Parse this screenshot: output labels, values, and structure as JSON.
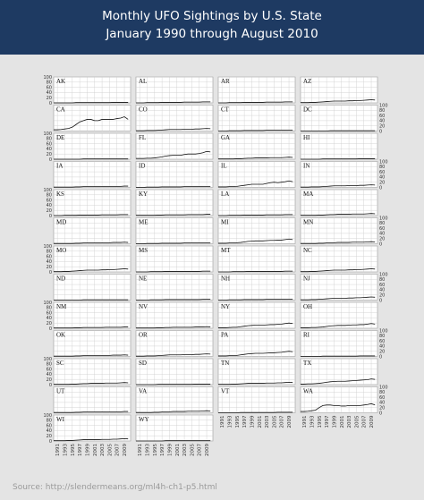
{
  "chart_data": {
    "type": "line",
    "title": "Monthly UFO Sightings by U.S. State",
    "subtitle": "January 1990 through August 2010",
    "x": [
      1990,
      1991,
      1992,
      1993,
      1994,
      1995,
      1996,
      1997,
      1998,
      1999,
      2000,
      2001,
      2002,
      2003,
      2004,
      2005,
      2006,
      2007,
      2008,
      2009,
      2010
    ],
    "xlim": [
      1990,
      2010.67
    ],
    "xticks": [
      1991,
      1993,
      1995,
      1997,
      1999,
      2001,
      2003,
      2005,
      2007,
      2009
    ],
    "ylim": [
      0,
      100
    ],
    "yticks": [
      0,
      20,
      40,
      60,
      80,
      100
    ],
    "grid": true,
    "color": "#111111",
    "series": [
      {
        "name": "AK",
        "values": [
          0,
          0,
          0,
          0,
          0,
          0,
          1,
          1,
          1,
          1,
          1,
          1,
          1,
          1,
          1,
          1,
          2,
          2,
          2,
          2,
          2
        ]
      },
      {
        "name": "AL",
        "values": [
          0,
          0,
          0,
          1,
          1,
          1,
          1,
          2,
          2,
          2,
          2,
          2,
          2,
          3,
          3,
          3,
          3,
          3,
          4,
          4,
          4
        ]
      },
      {
        "name": "AR",
        "values": [
          0,
          0,
          0,
          1,
          1,
          1,
          1,
          2,
          2,
          2,
          2,
          2,
          2,
          3,
          3,
          3,
          3,
          3,
          4,
          4,
          4
        ]
      },
      {
        "name": "AZ",
        "values": [
          1,
          1,
          1,
          2,
          2,
          3,
          4,
          5,
          6,
          7,
          7,
          7,
          7,
          8,
          8,
          9,
          9,
          10,
          11,
          12,
          11
        ]
      },
      {
        "name": "CA",
        "values": [
          5,
          5,
          6,
          8,
          10,
          15,
          25,
          35,
          40,
          45,
          45,
          40,
          40,
          45,
          45,
          45,
          45,
          48,
          50,
          55,
          45
        ]
      },
      {
        "name": "CO",
        "values": [
          1,
          1,
          1,
          2,
          2,
          2,
          3,
          4,
          5,
          6,
          6,
          6,
          6,
          7,
          7,
          7,
          8,
          8,
          9,
          10,
          9
        ]
      },
      {
        "name": "CT",
        "values": [
          0,
          0,
          0,
          1,
          1,
          1,
          1,
          2,
          2,
          2,
          2,
          2,
          2,
          3,
          3,
          3,
          3,
          3,
          4,
          4,
          4
        ]
      },
      {
        "name": "DC",
        "values": [
          0,
          0,
          0,
          0,
          0,
          0,
          0,
          0,
          1,
          1,
          1,
          1,
          1,
          1,
          1,
          1,
          1,
          1,
          1,
          1,
          1
        ]
      },
      {
        "name": "DE",
        "values": [
          0,
          0,
          0,
          0,
          0,
          0,
          0,
          0,
          1,
          1,
          1,
          1,
          1,
          1,
          1,
          1,
          1,
          1,
          1,
          1,
          1
        ]
      },
      {
        "name": "FL",
        "values": [
          3,
          3,
          3,
          4,
          4,
          5,
          7,
          9,
          12,
          14,
          15,
          15,
          15,
          18,
          20,
          20,
          20,
          22,
          25,
          30,
          28
        ]
      },
      {
        "name": "GA",
        "values": [
          1,
          1,
          1,
          1,
          1,
          2,
          2,
          3,
          4,
          4,
          5,
          5,
          5,
          5,
          6,
          6,
          6,
          6,
          7,
          8,
          7
        ]
      },
      {
        "name": "HI",
        "values": [
          0,
          0,
          0,
          0,
          0,
          0,
          1,
          1,
          1,
          1,
          1,
          1,
          1,
          1,
          1,
          1,
          2,
          2,
          2,
          2,
          2
        ]
      },
      {
        "name": "IA",
        "values": [
          1,
          1,
          1,
          1,
          1,
          1,
          2,
          2,
          3,
          3,
          3,
          3,
          3,
          3,
          4,
          4,
          4,
          4,
          4,
          5,
          5
        ]
      },
      {
        "name": "ID",
        "values": [
          0,
          0,
          0,
          1,
          1,
          1,
          1,
          2,
          2,
          2,
          2,
          2,
          2,
          3,
          3,
          3,
          3,
          3,
          4,
          4,
          4
        ]
      },
      {
        "name": "IL",
        "values": [
          2,
          2,
          2,
          3,
          3,
          4,
          6,
          8,
          10,
          12,
          12,
          12,
          12,
          15,
          18,
          20,
          18,
          20,
          22,
          25,
          22
        ]
      },
      {
        "name": "IN",
        "values": [
          1,
          1,
          1,
          2,
          2,
          2,
          3,
          4,
          5,
          6,
          6,
          6,
          6,
          7,
          7,
          7,
          8,
          8,
          9,
          10,
          9
        ]
      },
      {
        "name": "KS",
        "values": [
          0,
          0,
          0,
          1,
          1,
          1,
          1,
          2,
          2,
          2,
          2,
          2,
          2,
          3,
          3,
          3,
          3,
          3,
          4,
          4,
          4
        ]
      },
      {
        "name": "KY",
        "values": [
          1,
          1,
          1,
          1,
          1,
          1,
          2,
          2,
          3,
          3,
          3,
          3,
          3,
          3,
          4,
          4,
          4,
          4,
          4,
          5,
          5
        ]
      },
      {
        "name": "LA",
        "values": [
          0,
          0,
          0,
          1,
          1,
          1,
          1,
          2,
          2,
          2,
          2,
          2,
          2,
          3,
          3,
          3,
          3,
          3,
          4,
          4,
          4
        ]
      },
      {
        "name": "MA",
        "values": [
          1,
          1,
          1,
          1,
          1,
          2,
          2,
          3,
          4,
          4,
          5,
          5,
          5,
          5,
          6,
          6,
          6,
          6,
          7,
          8,
          7
        ]
      },
      {
        "name": "MD",
        "values": [
          1,
          1,
          1,
          1,
          1,
          1,
          2,
          2,
          3,
          3,
          4,
          4,
          4,
          4,
          4,
          4,
          5,
          5,
          5,
          6,
          5
        ]
      },
      {
        "name": "ME",
        "values": [
          0,
          0,
          0,
          1,
          1,
          1,
          1,
          2,
          2,
          2,
          2,
          2,
          2,
          3,
          3,
          3,
          3,
          3,
          4,
          4,
          4
        ]
      },
      {
        "name": "MI",
        "values": [
          2,
          2,
          2,
          3,
          3,
          4,
          5,
          7,
          9,
          10,
          11,
          11,
          11,
          12,
          13,
          13,
          14,
          14,
          16,
          18,
          16
        ]
      },
      {
        "name": "MN",
        "values": [
          1,
          1,
          1,
          1,
          1,
          2,
          2,
          3,
          4,
          4,
          5,
          5,
          5,
          5,
          6,
          6,
          6,
          6,
          7,
          8,
          7
        ]
      },
      {
        "name": "MO",
        "values": [
          1,
          1,
          1,
          2,
          2,
          3,
          4,
          5,
          6,
          7,
          7,
          7,
          7,
          8,
          8,
          9,
          9,
          10,
          11,
          12,
          11
        ]
      },
      {
        "name": "MS",
        "values": [
          0,
          0,
          0,
          0,
          1,
          1,
          1,
          1,
          2,
          2,
          2,
          2,
          2,
          2,
          2,
          2,
          2,
          2,
          3,
          3,
          3
        ]
      },
      {
        "name": "MT",
        "values": [
          0,
          0,
          0,
          0,
          1,
          1,
          1,
          1,
          2,
          2,
          2,
          2,
          2,
          2,
          2,
          2,
          2,
          2,
          3,
          3,
          3
        ]
      },
      {
        "name": "NC",
        "values": [
          1,
          1,
          1,
          2,
          2,
          3,
          4,
          5,
          6,
          7,
          7,
          7,
          7,
          8,
          8,
          9,
          9,
          10,
          11,
          12,
          11
        ]
      },
      {
        "name": "ND",
        "values": [
          0,
          0,
          0,
          0,
          0,
          0,
          0,
          0,
          1,
          1,
          1,
          1,
          1,
          1,
          1,
          1,
          1,
          1,
          1,
          1,
          1
        ]
      },
      {
        "name": "NE",
        "values": [
          0,
          0,
          0,
          0,
          1,
          1,
          1,
          1,
          2,
          2,
          2,
          2,
          2,
          2,
          2,
          2,
          2,
          2,
          3,
          3,
          3
        ]
      },
      {
        "name": "NH",
        "values": [
          0,
          0,
          0,
          1,
          1,
          1,
          1,
          2,
          2,
          2,
          2,
          2,
          2,
          3,
          3,
          3,
          3,
          3,
          4,
          4,
          4
        ]
      },
      {
        "name": "NJ",
        "values": [
          1,
          1,
          1,
          2,
          2,
          3,
          4,
          5,
          6,
          7,
          7,
          7,
          7,
          8,
          8,
          9,
          9,
          10,
          11,
          12,
          11
        ]
      },
      {
        "name": "NM",
        "values": [
          1,
          1,
          1,
          1,
          1,
          1,
          2,
          2,
          3,
          3,
          3,
          3,
          3,
          3,
          4,
          4,
          4,
          4,
          4,
          5,
          5
        ]
      },
      {
        "name": "NV",
        "values": [
          1,
          1,
          1,
          1,
          1,
          1,
          2,
          2,
          3,
          3,
          4,
          4,
          4,
          4,
          4,
          4,
          5,
          5,
          5,
          6,
          5
        ]
      },
      {
        "name": "NY",
        "values": [
          2,
          2,
          2,
          3,
          4,
          4,
          6,
          8,
          10,
          11,
          12,
          12,
          12,
          13,
          14,
          14,
          15,
          16,
          18,
          20,
          18
        ]
      },
      {
        "name": "OH",
        "values": [
          2,
          2,
          2,
          3,
          3,
          4,
          5,
          7,
          9,
          10,
          11,
          11,
          11,
          12,
          13,
          13,
          14,
          14,
          16,
          18,
          16
        ]
      },
      {
        "name": "OK",
        "values": [
          1,
          1,
          1,
          1,
          1,
          1,
          2,
          2,
          3,
          3,
          4,
          4,
          4,
          4,
          4,
          4,
          5,
          5,
          5,
          6,
          5
        ]
      },
      {
        "name": "OR",
        "values": [
          1,
          1,
          1,
          2,
          2,
          2,
          3,
          4,
          5,
          6,
          6,
          6,
          6,
          7,
          7,
          7,
          8,
          8,
          9,
          10,
          9
        ]
      },
      {
        "name": "PA",
        "values": [
          2,
          2,
          2,
          3,
          4,
          4,
          6,
          8,
          10,
          11,
          12,
          12,
          12,
          13,
          14,
          14,
          15,
          16,
          18,
          20,
          18
        ]
      },
      {
        "name": "RI",
        "values": [
          0,
          0,
          0,
          0,
          0,
          0,
          1,
          1,
          1,
          1,
          1,
          1,
          1,
          1,
          1,
          1,
          2,
          2,
          2,
          2,
          2
        ]
      },
      {
        "name": "SC",
        "values": [
          1,
          1,
          1,
          1,
          1,
          2,
          2,
          3,
          4,
          4,
          5,
          5,
          5,
          5,
          6,
          6,
          6,
          6,
          7,
          8,
          7
        ]
      },
      {
        "name": "SD",
        "values": [
          0,
          0,
          0,
          0,
          0,
          0,
          1,
          1,
          1,
          1,
          1,
          1,
          1,
          1,
          1,
          1,
          2,
          2,
          2,
          2,
          2
        ]
      },
      {
        "name": "TN",
        "values": [
          1,
          1,
          1,
          1,
          2,
          2,
          3,
          4,
          5,
          5,
          5,
          5,
          5,
          6,
          6,
          6,
          7,
          7,
          8,
          9,
          8
        ]
      },
      {
        "name": "TX",
        "values": [
          2,
          2,
          3,
          3,
          4,
          5,
          7,
          9,
          11,
          12,
          13,
          13,
          13,
          14,
          15,
          16,
          17,
          18,
          19,
          22,
          20
        ]
      },
      {
        "name": "UT",
        "values": [
          1,
          1,
          1,
          1,
          1,
          1,
          2,
          2,
          3,
          3,
          3,
          3,
          3,
          3,
          4,
          4,
          4,
          4,
          4,
          5,
          5
        ]
      },
      {
        "name": "VA",
        "values": [
          1,
          1,
          1,
          1,
          1,
          2,
          2,
          3,
          4,
          4,
          5,
          5,
          5,
          5,
          6,
          6,
          6,
          6,
          7,
          8,
          7
        ]
      },
      {
        "name": "VT",
        "values": [
          0,
          0,
          0,
          0,
          0,
          0,
          1,
          1,
          1,
          1,
          1,
          1,
          1,
          1,
          1,
          1,
          2,
          2,
          2,
          2,
          2
        ]
      },
      {
        "name": "WA",
        "values": [
          5,
          5,
          6,
          8,
          10,
          20,
          28,
          30,
          30,
          28,
          28,
          26,
          26,
          28,
          28,
          28,
          28,
          30,
          32,
          35,
          30
        ]
      },
      {
        "name": "WI",
        "values": [
          1,
          1,
          1,
          1,
          2,
          2,
          3,
          4,
          5,
          5,
          5,
          5,
          5,
          6,
          6,
          6,
          7,
          7,
          8,
          9,
          8
        ]
      },
      {
        "name": "WY",
        "values": [
          0,
          0,
          0,
          0,
          0,
          0,
          0,
          0,
          1,
          1,
          1,
          1,
          1,
          1,
          1,
          1,
          1,
          1,
          1,
          1,
          1
        ]
      }
    ]
  },
  "footer": {
    "source": "Source: http://slendermeans.org/ml4h-ch1-p5.html"
  }
}
